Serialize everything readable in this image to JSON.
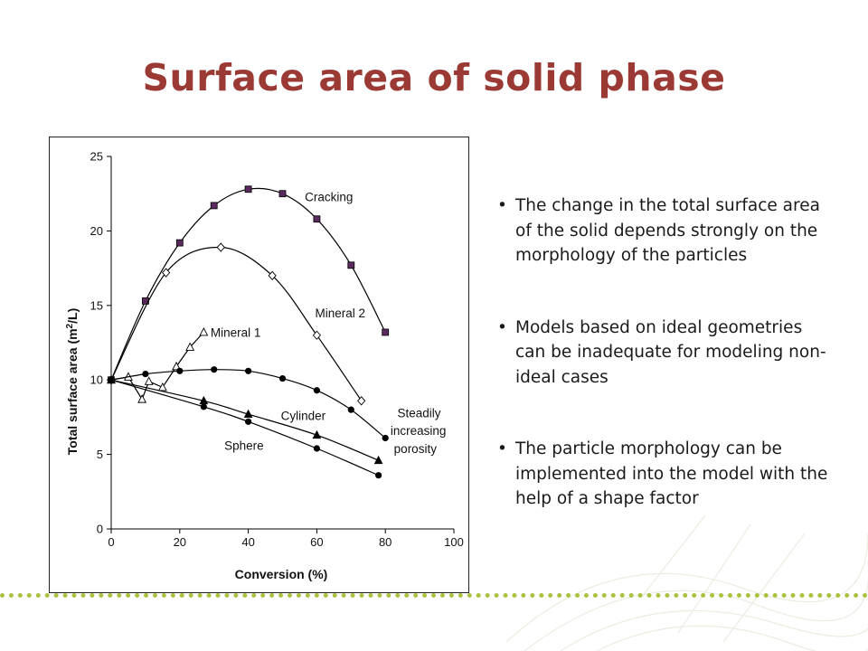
{
  "slide": {
    "title": "Surface area of solid phase",
    "bullets": [
      "The change in the total surface area of the solid depends strongly on the morphology of the particles",
      "Models based on ideal geometries can be inadequate for modeling non-ideal cases",
      "The particle morphology can be implemented into the model with the help of a shape factor"
    ],
    "bullet_glyph": "•"
  },
  "colors": {
    "title": "#9b3a35",
    "divider": "#a9c23f",
    "cracking_marker": "#5a2a5e"
  },
  "chart_data": {
    "type": "line",
    "xlabel": "Conversion (%)",
    "ylabel_main": "Total surface area (m",
    "ylabel_sup": "2",
    "ylabel_end": "/L)",
    "xlim": [
      0,
      100
    ],
    "ylim": [
      0,
      25
    ],
    "xticks": [
      "0",
      "20",
      "40",
      "60",
      "80",
      "100"
    ],
    "yticks": [
      "0",
      "5",
      "10",
      "15",
      "20",
      "25"
    ],
    "grid": false,
    "legend": "none",
    "series": [
      {
        "name": "Cracking",
        "marker": "square",
        "x": [
          0,
          10,
          20,
          30,
          40,
          50,
          60,
          70,
          80
        ],
        "y": [
          10.0,
          15.3,
          19.2,
          21.7,
          22.8,
          22.5,
          20.8,
          17.7,
          13.2
        ]
      },
      {
        "name": "Mineral 2",
        "marker": "diamond",
        "x": [
          0,
          16,
          32,
          47,
          60,
          73
        ],
        "y": [
          10.0,
          17.2,
          18.9,
          17.0,
          13.0,
          8.6
        ]
      },
      {
        "name": "Mineral 1",
        "marker": "triangle-open",
        "x": [
          0,
          5,
          9,
          11,
          15,
          19,
          23,
          27
        ],
        "y": [
          10.0,
          10.2,
          8.7,
          9.9,
          9.5,
          10.9,
          12.2,
          13.2
        ]
      },
      {
        "name": "Steadily increasing porosity",
        "marker": "circle",
        "x": [
          0,
          10,
          20,
          30,
          40,
          50,
          60,
          70,
          80
        ],
        "y": [
          10.0,
          10.4,
          10.6,
          10.7,
          10.6,
          10.1,
          9.3,
          8.0,
          6.1
        ]
      },
      {
        "name": "Cylinder",
        "marker": "triangle",
        "x": [
          0,
          27,
          40,
          60,
          78
        ],
        "y": [
          10.0,
          8.6,
          7.7,
          6.3,
          4.6
        ]
      },
      {
        "name": "Sphere",
        "marker": "circle",
        "x": [
          0,
          27,
          40,
          60,
          78
        ],
        "y": [
          10.0,
          8.2,
          7.2,
          5.4,
          3.6
        ]
      }
    ],
    "annotations": [
      {
        "text": "Cracking",
        "x": 56.5,
        "y": 22.0,
        "for": "Cracking"
      },
      {
        "text": "Mineral 2",
        "x": 59.5,
        "y": 14.2,
        "for": "Mineral 2"
      },
      {
        "text": "Mineral 1",
        "x": 29.0,
        "y": 12.9,
        "for": "Mineral 1"
      },
      {
        "text": "Cylinder",
        "x": 49.5,
        "y": 7.3,
        "for": "Cylinder"
      },
      {
        "text": "Sphere",
        "x": 33.0,
        "y": 5.3,
        "for": "Sphere"
      },
      {
        "text": "Steadily",
        "x": 83.5,
        "y": 7.5,
        "for": "Steadily increasing porosity"
      },
      {
        "text": "increasing",
        "x": 81.5,
        "y": 6.3,
        "for": "Steadily increasing porosity"
      },
      {
        "text": "porosity",
        "x": 82.5,
        "y": 5.1,
        "for": "Steadily increasing porosity"
      }
    ]
  }
}
